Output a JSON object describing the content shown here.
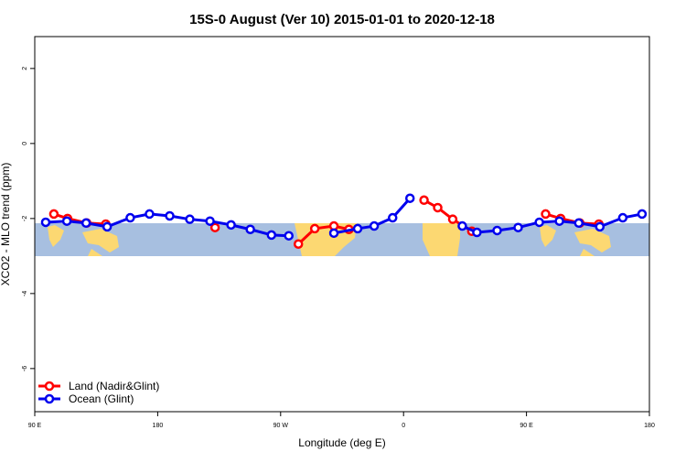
{
  "chart_data": {
    "type": "line",
    "title": "15S-0 August (Ver 10)   2015-01-01 to 2020-12-18",
    "x_label": "Longitude (deg E)",
    "y_label": "XCO2 - MLO trend (ppm)",
    "xlim": [
      90,
      540
    ],
    "xticks": [
      {
        "value": 90,
        "label": "90 E"
      },
      180,
      {
        "value": 270,
        "label": "90 W"
      },
      {
        "value": 360,
        "label": "0"
      },
      {
        "value": 450,
        "label": "90 E"
      },
      {
        "value": 540,
        "label": "180"
      }
    ],
    "ylim": [
      -7.15,
      2.85
    ],
    "yticks": [
      -6,
      -4,
      -2,
      0,
      2
    ],
    "legend": "bottom-left",
    "series": [
      {
        "name": "Land (Nadir&Glint)",
        "color": "#ff0000",
        "x": [
          104,
          114,
          128,
          142,
          null,
          222,
          null,
          283,
          295,
          309,
          320,
          null,
          375,
          385,
          396,
          410,
          null,
          464,
          475,
          489,
          503
        ],
        "values": [
          -1.88,
          -2.0,
          -2.12,
          -2.15,
          null,
          -2.24,
          null,
          -2.68,
          -2.27,
          -2.2,
          -2.29,
          null,
          -1.51,
          -1.71,
          -2.02,
          -2.34,
          null,
          -1.88,
          -2.0,
          -2.12,
          -2.15
        ]
      },
      {
        "name": "Ocean (Glint)",
        "color": "#0000ee",
        "x": [
          98,
          113.5,
          127.6,
          143,
          159.9,
          174,
          188.8,
          203.5,
          218.3,
          233.7,
          247.8,
          263.3,
          276,
          null,
          309,
          326.4,
          338.5,
          352,
          364.7,
          null,
          403,
          413.7,
          428.5,
          443.9,
          459.4,
          474.1,
          488.3,
          503.7,
          520.5,
          534.6
        ],
        "values": [
          -2.1,
          -2.07,
          -2.12,
          -2.22,
          -1.98,
          -1.88,
          -1.93,
          -2.02,
          -2.07,
          -2.17,
          -2.29,
          -2.44,
          -2.46,
          null,
          -2.39,
          -2.27,
          -2.2,
          -1.98,
          -1.46,
          null,
          -2.2,
          -2.37,
          -2.32,
          -2.24,
          -2.1,
          -2.07,
          -2.12,
          -2.22,
          -1.98,
          -1.88
        ]
      }
    ]
  }
}
